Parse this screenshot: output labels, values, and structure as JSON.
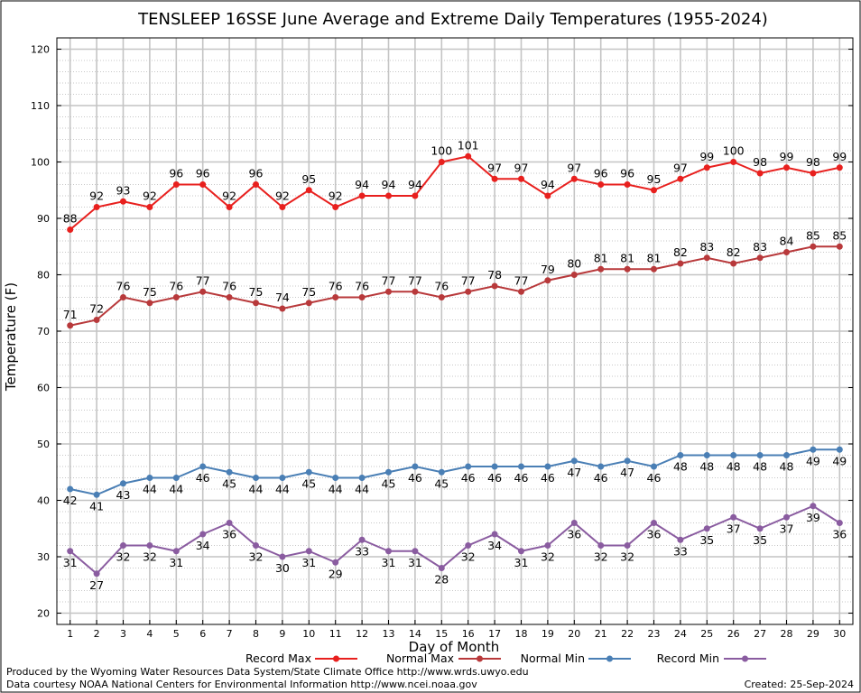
{
  "chart_data": {
    "type": "line",
    "title": "TENSLEEP 16SSE June Average and Extreme Daily Temperatures (1955-2024)",
    "xlabel": "Day of Month",
    "ylabel": "Temperature (F)",
    "ylim": [
      18,
      122
    ],
    "yticks": [
      20,
      30,
      40,
      50,
      60,
      70,
      80,
      90,
      100,
      110,
      120
    ],
    "x": [
      1,
      2,
      3,
      4,
      5,
      6,
      7,
      8,
      9,
      10,
      11,
      12,
      13,
      14,
      15,
      16,
      17,
      18,
      19,
      20,
      21,
      22,
      23,
      24,
      25,
      26,
      27,
      28,
      29,
      30
    ],
    "grid": true,
    "legend": "bottom",
    "series": [
      {
        "name": "Record Max",
        "color": "#e8201e",
        "label_pos": "above",
        "values": [
          88,
          92,
          93,
          92,
          96,
          96,
          92,
          96,
          92,
          95,
          92,
          94,
          94,
          94,
          100,
          101,
          97,
          97,
          94,
          97,
          96,
          96,
          95,
          97,
          99,
          100,
          98,
          99,
          98,
          99
        ]
      },
      {
        "name": "Normal Max",
        "color": "#b8393b",
        "label_pos": "above",
        "values": [
          71,
          72,
          76,
          75,
          76,
          77,
          76,
          75,
          74,
          75,
          76,
          76,
          77,
          77,
          76,
          77,
          78,
          77,
          79,
          80,
          81,
          81,
          81,
          82,
          83,
          82,
          83,
          84,
          85,
          85
        ]
      },
      {
        "name": "Normal Min",
        "color": "#4a7fb5",
        "label_pos": "below",
        "values": [
          42,
          41,
          43,
          44,
          44,
          46,
          45,
          44,
          44,
          45,
          44,
          44,
          45,
          46,
          45,
          46,
          46,
          46,
          46,
          47,
          46,
          47,
          46,
          48,
          48,
          48,
          48,
          48,
          49,
          49
        ]
      },
      {
        "name": "Record Min",
        "color": "#8a5ca0",
        "label_pos": "below",
        "values": [
          31,
          27,
          32,
          32,
          31,
          34,
          36,
          32,
          30,
          31,
          29,
          33,
          31,
          31,
          28,
          32,
          34,
          31,
          32,
          36,
          32,
          32,
          36,
          33,
          35,
          37,
          35,
          37,
          39,
          36
        ]
      }
    ]
  },
  "footer": {
    "produced_by": "Produced by the Wyoming Water Resources Data System/State Climate Office http://www.wrds.uwyo.edu",
    "data_courtesy": "Data courtesy NOAA National Centers for Environmental Information http://www.ncei.noaa.gov",
    "created": "Created:  25-Sep-2024"
  }
}
